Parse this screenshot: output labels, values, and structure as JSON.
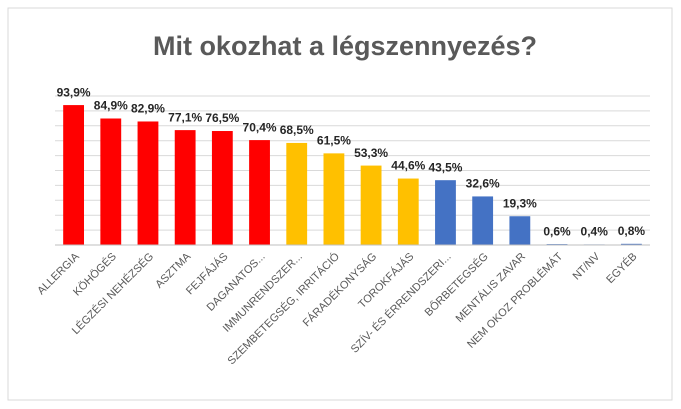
{
  "chart_data": {
    "type": "bar",
    "title": "Mit okozhat a légszennyezés?",
    "categories": [
      "ALLERGIA",
      "KÖHÖGÉS",
      "LÉGZÉSI NEHÉZSÉG",
      "ASZTMA",
      "FEJFÁJÁS",
      "DAGANATOS...",
      "IMMUNRENDSZER...",
      "SZEMBETEGSÉG, IRRITÁCIÓ",
      "FÁRADÉKONYSÁG",
      "TOROKFÁJÁS",
      "SZÍV- ÉS ÉRRENDSZERI...",
      "BŐRBETEGSÉG",
      "MENTÁLIS ZAVAR",
      "NEM OKOZ PROBLÉMÁT",
      "NT/NV",
      "EGYÉB"
    ],
    "values": [
      93.9,
      84.9,
      82.9,
      77.1,
      76.5,
      70.4,
      68.5,
      61.5,
      53.3,
      44.6,
      43.5,
      32.6,
      19.3,
      0.6,
      0.4,
      0.8
    ],
    "value_labels": [
      "93,9%",
      "84,9%",
      "82,9%",
      "77,1%",
      "76,5%",
      "70,4%",
      "68,5%",
      "61,5%",
      "53,3%",
      "44,6%",
      "43,5%",
      "32,6%",
      "19,3%",
      "0,6%",
      "0,4%",
      "0,8%"
    ],
    "colors": [
      "#ff0000",
      "#ff0000",
      "#ff0000",
      "#ff0000",
      "#ff0000",
      "#ff0000",
      "#ffc000",
      "#ffc000",
      "#ffc000",
      "#ffc000",
      "#4472c4",
      "#4472c4",
      "#4472c4",
      "#4472c4",
      "#4472c4",
      "#4472c4"
    ],
    "ylim": [
      0,
      100
    ],
    "yticks": [
      0,
      10,
      20,
      30,
      40,
      50,
      60,
      70,
      80,
      90,
      100
    ],
    "grid": true
  }
}
